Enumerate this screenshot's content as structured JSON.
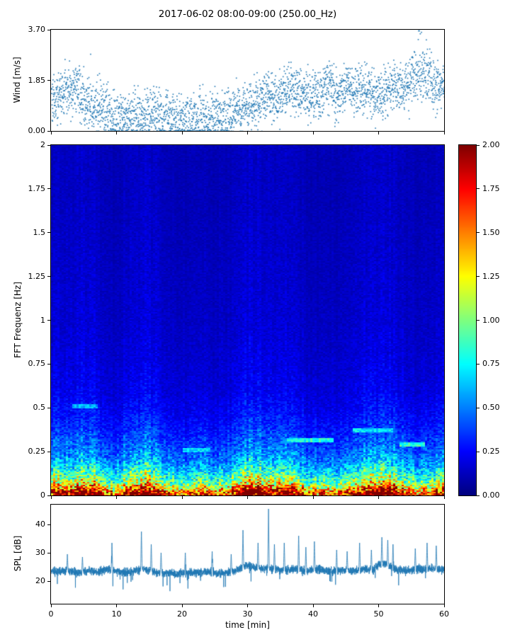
{
  "title": "2017-06-02 08:00-09:00 (250.00_Hz)",
  "colors": {
    "series": "#1f77b4",
    "axis": "#000000",
    "background": "#ffffff"
  },
  "chart_data": [
    {
      "type": "scatter",
      "name": "wind",
      "title": "",
      "ylabel": "Wind [m/s]",
      "ylim": [
        0.0,
        3.7
      ],
      "yticks": {
        "values": [
          0.0,
          1.85,
          3.7
        ],
        "labels": [
          "0.00",
          "1.85",
          "3.70"
        ]
      },
      "xlim": [
        0,
        60
      ],
      "points_per_minute": 50,
      "spread": 0.9,
      "minute_mean": [
        1.15,
        1.35,
        1.5,
        1.55,
        1.35,
        1.05,
        0.85,
        0.95,
        0.7,
        0.55,
        0.5,
        0.55,
        0.6,
        0.5,
        0.6,
        0.7,
        0.6,
        0.5,
        0.5,
        0.45,
        0.5,
        0.5,
        0.55,
        0.5,
        0.6,
        0.55,
        0.6,
        0.7,
        0.8,
        0.9,
        1.0,
        1.1,
        1.2,
        1.3,
        1.2,
        1.4,
        1.5,
        1.4,
        1.3,
        1.2,
        1.3,
        1.5,
        1.6,
        1.4,
        1.5,
        1.6,
        1.5,
        1.4,
        1.5,
        1.3,
        1.4,
        1.5,
        1.6,
        1.5,
        1.7,
        2.0,
        2.2,
        1.9,
        1.6,
        1.8
      ]
    },
    {
      "type": "heatmap",
      "name": "spectrogram",
      "ylabel": "FFT Frequenz [Hz]",
      "ylim": [
        0,
        2
      ],
      "yticks": {
        "values": [
          0,
          0.25,
          0.5,
          0.75,
          1,
          1.25,
          1.5,
          1.75,
          2
        ],
        "labels": [
          "0",
          "0.25",
          "0.5",
          "0.75",
          "1",
          "1.25",
          "1.5",
          "1.75",
          "2"
        ]
      },
      "xlim": [
        0,
        60
      ],
      "colormap": "jet",
      "clim": [
        0,
        2
      ],
      "colorbar_ticks": {
        "values": [
          0,
          0.25,
          0.5,
          0.75,
          1.0,
          1.25,
          1.5,
          1.75,
          2.0
        ],
        "labels": [
          "0.00",
          "0.25",
          "0.50",
          "0.75",
          "1.00",
          "1.25",
          "1.50",
          "1.75",
          "2.00"
        ]
      },
      "freq_profile": [
        [
          0.0,
          1.95
        ],
        [
          0.02,
          1.85
        ],
        [
          0.04,
          1.55
        ],
        [
          0.06,
          1.25
        ],
        [
          0.08,
          1.05
        ],
        [
          0.1,
          0.92
        ],
        [
          0.125,
          0.82
        ],
        [
          0.15,
          0.72
        ],
        [
          0.175,
          0.62
        ],
        [
          0.2,
          0.55
        ],
        [
          0.25,
          0.45
        ],
        [
          0.3,
          0.38
        ],
        [
          0.35,
          0.33
        ],
        [
          0.4,
          0.28
        ],
        [
          0.5,
          0.22
        ],
        [
          0.6,
          0.18
        ],
        [
          0.8,
          0.15
        ],
        [
          1.0,
          0.13
        ],
        [
          1.25,
          0.12
        ],
        [
          1.5,
          0.11
        ],
        [
          1.75,
          0.1
        ],
        [
          2.0,
          0.1
        ]
      ],
      "time_envelope": [
        1.1,
        1.2,
        1.15,
        1.1,
        1.2,
        1.25,
        1.2,
        1.1,
        0.9,
        0.8,
        0.85,
        1.0,
        1.15,
        1.2,
        1.25,
        1.2,
        1.1,
        0.95,
        0.85,
        0.8,
        0.85,
        0.8,
        0.85,
        0.9,
        0.85,
        0.8,
        0.85,
        0.95,
        1.1,
        1.2,
        1.25,
        1.3,
        1.25,
        1.2,
        1.15,
        1.2,
        1.15,
        1.1,
        0.95,
        0.85,
        0.8,
        0.85,
        0.9,
        0.85,
        0.8,
        0.85,
        0.95,
        1.1,
        1.2,
        1.15,
        1.25,
        1.3,
        1.2,
        1.1,
        1.0,
        0.9,
        0.85,
        0.9,
        0.95,
        1.0
      ],
      "streaks": [
        {
          "t0": 36,
          "t1": 43,
          "f": 0.32,
          "v": 0.8
        },
        {
          "t0": 53,
          "t1": 57,
          "f": 0.3,
          "v": 0.85
        },
        {
          "t0": 3,
          "t1": 7,
          "f": 0.52,
          "v": 0.6
        },
        {
          "t0": 46,
          "t1": 52,
          "f": 0.38,
          "v": 0.7
        },
        {
          "t0": 20,
          "t1": 24,
          "f": 0.27,
          "v": 0.7
        }
      ]
    },
    {
      "type": "line",
      "name": "spl",
      "ylabel": "SPL [dB]",
      "xlabel": "time [min]",
      "ylim": [
        12,
        47
      ],
      "yticks": {
        "values": [
          20,
          30,
          40
        ],
        "labels": [
          "20",
          "30",
          "40"
        ]
      },
      "xlim": [
        0,
        60
      ],
      "xticks": {
        "values": [
          0,
          10,
          20,
          30,
          40,
          50,
          60
        ],
        "labels": [
          "0",
          "10",
          "20",
          "30",
          "40",
          "50",
          "60"
        ]
      },
      "noise_amp": 1.4,
      "baseline": [
        23.5,
        23.2,
        23.8,
        23.4,
        23.0,
        23.3,
        23.6,
        23.2,
        23.8,
        24.0,
        23.4,
        23.0,
        23.3,
        23.8,
        24.2,
        23.6,
        23.2,
        22.8,
        23.0,
        22.6,
        22.9,
        23.2,
        22.8,
        23.0,
        23.3,
        22.9,
        22.7,
        23.0,
        23.4,
        24.5,
        25.5,
        24.8,
        24.4,
        24.6,
        24.2,
        23.8,
        24.0,
        24.3,
        23.9,
        23.5,
        23.8,
        24.0,
        23.6,
        23.4,
        23.7,
        24.0,
        23.6,
        23.9,
        24.2,
        23.8,
        26.0,
        26.3,
        24.8,
        24.0,
        23.6,
        23.9,
        24.3,
        24.0,
        24.4,
        24.1
      ],
      "spikes": [
        [
          2.5,
          29.5
        ],
        [
          4.8,
          28.5
        ],
        [
          9.3,
          33.5
        ],
        [
          13.8,
          37.5
        ],
        [
          15.3,
          33
        ],
        [
          16.8,
          30
        ],
        [
          20.5,
          30
        ],
        [
          24.6,
          30.5
        ],
        [
          27.5,
          29.5
        ],
        [
          29.3,
          38
        ],
        [
          31.6,
          33.5
        ],
        [
          33.2,
          45.5
        ],
        [
          34.1,
          33
        ],
        [
          35.6,
          33.5
        ],
        [
          37.8,
          36
        ],
        [
          38.9,
          32
        ],
        [
          40.2,
          34
        ],
        [
          43.6,
          31
        ],
        [
          45.2,
          30.5
        ],
        [
          47.1,
          33.5
        ],
        [
          48.9,
          31
        ],
        [
          50.5,
          35.5
        ],
        [
          51.4,
          34.5
        ],
        [
          52.2,
          33
        ],
        [
          55.6,
          31.5
        ],
        [
          57.4,
          33.5
        ],
        [
          58.8,
          32.5
        ]
      ]
    }
  ]
}
